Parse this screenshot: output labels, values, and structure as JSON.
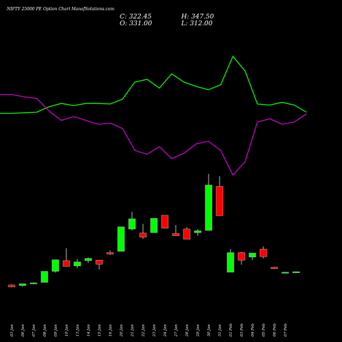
{
  "header": {
    "title": "NIFTY 25000  PE Option Chart ManafSolutions.com"
  },
  "ohlc": {
    "close": "C: 322.45",
    "high": "H: 347.50",
    "open": "O: 331.00",
    "low": "L: 312.00"
  },
  "colors": {
    "background": "#000000",
    "bullish": "#00ff00",
    "bearish": "#ff0000",
    "indicator_green": "#00ff00",
    "indicator_magenta": "#cc00cc"
  },
  "chart_data": {
    "type": "candlestick",
    "grid": false,
    "categories": [
      "03 Jan",
      "06 Jan",
      "07 Jan",
      "08 Jan",
      "09 Jan",
      "10 Jan",
      "13 Jan",
      "14 Jan",
      "15 Jan",
      "16 Jan",
      "17 Jan",
      "20 Jan",
      "21 Jan",
      "22 Jan",
      "23 Jan",
      "24 Jan",
      "27 Jan",
      "28 Jan",
      "29 Jan",
      "30 Jan",
      "31 Jan",
      "01 Feb",
      "03 Feb",
      "04 Feb",
      "05 Feb",
      "06 Feb",
      "07 Feb"
    ],
    "x_labels": [
      "03 Jan",
      "06 Jan",
      "07 Jan",
      "08 Jan",
      "09 Jan",
      "10 Jan",
      "13 Jan",
      "14 Jan",
      "15 Jan",
      "16 Jan",
      "20 Jan",
      "21 Jan",
      "22 Jan",
      "23 Jan",
      "24 Jan",
      "27 Jan",
      "28 Jan",
      "29 Jan",
      "30 Jan",
      "31 Jan",
      "01 Feb",
      "03 Feb",
      "04 Feb",
      "05 Feb",
      "06 Feb",
      "07 Feb"
    ],
    "candles": [
      {
        "open": 8,
        "high": 10,
        "low": 3,
        "close": 4
      },
      {
        "open": 7,
        "high": 11,
        "low": 5,
        "close": 11
      },
      {
        "open": 12,
        "high": 14,
        "low": 11,
        "close": 13
      },
      {
        "open": 14,
        "high": 39,
        "low": 14,
        "close": 39
      },
      {
        "open": 39,
        "high": 65,
        "low": 36,
        "close": 65
      },
      {
        "open": 63,
        "high": 91,
        "low": 50,
        "close": 50
      },
      {
        "open": 51,
        "high": 67,
        "low": 46,
        "close": 60
      },
      {
        "open": 63,
        "high": 70,
        "low": 58,
        "close": 68
      },
      {
        "open": 64,
        "high": 64,
        "low": 43,
        "close": 55
      },
      {
        "open": 81,
        "high": 86,
        "low": 76,
        "close": 78
      },
      {
        "open": 84,
        "high": 139,
        "low": 84,
        "close": 139
      },
      {
        "open": 134,
        "high": 173,
        "low": 131,
        "close": 157
      },
      {
        "open": 125,
        "high": 146,
        "low": 112,
        "close": 116
      },
      {
        "open": 126,
        "high": 158,
        "low": 126,
        "close": 158
      },
      {
        "open": 165,
        "high": 165,
        "low": 136,
        "close": 136
      },
      {
        "open": 124,
        "high": 143,
        "low": 118,
        "close": 119
      },
      {
        "open": 134,
        "high": 138,
        "low": 111,
        "close": 111
      },
      {
        "open": 126,
        "high": 134,
        "low": 119,
        "close": 130
      },
      {
        "open": 131,
        "high": 258,
        "low": 131,
        "close": 233
      },
      {
        "open": 230,
        "high": 253,
        "low": 164,
        "close": 164
      },
      {
        "open": 37,
        "high": 89,
        "low": 37,
        "close": 81
      },
      {
        "open": 81,
        "high": 83,
        "low": 54,
        "close": 64
      },
      {
        "open": 71,
        "high": 78,
        "low": 64,
        "close": 80
      },
      {
        "open": 89,
        "high": 95,
        "low": 68,
        "close": 72
      },
      {
        "open": 48,
        "high": 49,
        "low": 44,
        "close": 45
      },
      {
        "open": 37,
        "high": 37,
        "low": 37,
        "close": 37
      },
      {
        "open": 38,
        "high": 38,
        "low": 38,
        "close": 38
      }
    ],
    "indicators": [
      {
        "color": "#00ff00",
        "values": [
          0.18,
          0.18,
          0.19,
          0.2,
          0.3,
          0.36,
          0.32,
          0.36,
          0.36,
          0.35,
          0.44,
          0.75,
          0.8,
          0.64,
          0.9,
          0.75,
          0.67,
          0.61,
          0.7,
          1.22,
          0.95,
          0.35,
          0.33,
          0.38,
          0.33,
          0.2
        ]
      },
      {
        "color": "#cc00cc",
        "values": [
          0.52,
          0.52,
          0.48,
          0.45,
          0.22,
          0.05,
          0.12,
          0.05,
          -0.02,
          0.0,
          -0.1,
          -0.5,
          -0.57,
          -0.43,
          -0.65,
          -0.55,
          -0.38,
          -0.33,
          -0.5,
          -0.95,
          -0.7,
          0.02,
          0.08,
          -0.02,
          0.02,
          0.17
        ]
      }
    ]
  }
}
